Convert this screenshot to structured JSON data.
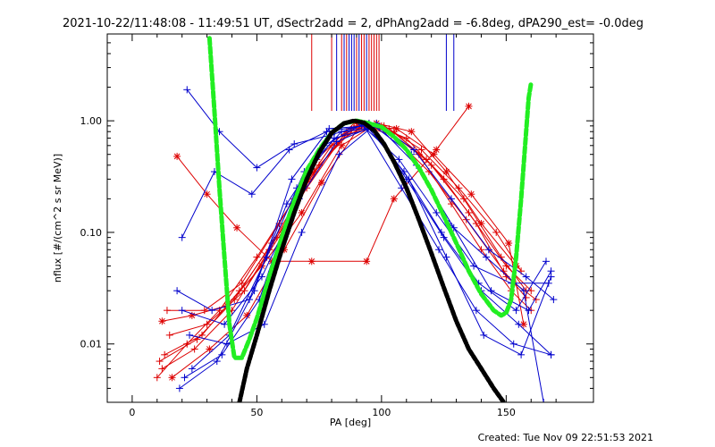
{
  "chart_data": {
    "type": "line",
    "title": "2021-10-22/11:48:08 - 11:49:51 UT, dSectr2add = 2, dPhAng2add = -6.8deg, dPA290_est= -0.0deg",
    "xlabel": "PA [deg]",
    "ylabel": "nflux [#/(cm^2 s sr MeV)]",
    "xlim": [
      -10,
      185
    ],
    "ylim": [
      0.003,
      6.0
    ],
    "yscale": "log",
    "xticks": [
      0,
      50,
      100,
      150
    ],
    "xtick_labels": [
      "0",
      "50",
      "100",
      "150"
    ],
    "yticks": [
      0.01,
      0.1,
      1.0
    ],
    "ytick_labels": [
      "0.01",
      "0.10",
      "1.00"
    ],
    "footer": "Created: Tue Nov 09 22:51:53 2021",
    "colors": {
      "red": "#dd0000",
      "blue": "#0000cc",
      "green": "#22ee22",
      "black": "#000000"
    },
    "vlines": [
      {
        "x": 72,
        "color": "red"
      },
      {
        "x": 80,
        "color": "red"
      },
      {
        "x": 82,
        "color": "blue"
      },
      {
        "x": 84,
        "color": "red"
      },
      {
        "x": 85,
        "color": "blue"
      },
      {
        "x": 86,
        "color": "red"
      },
      {
        "x": 87,
        "color": "blue"
      },
      {
        "x": 88,
        "color": "blue"
      },
      {
        "x": 89,
        "color": "blue"
      },
      {
        "x": 90,
        "color": "red"
      },
      {
        "x": 91,
        "color": "blue"
      },
      {
        "x": 92,
        "color": "red"
      },
      {
        "x": 93,
        "color": "red"
      },
      {
        "x": 94,
        "color": "blue"
      },
      {
        "x": 95,
        "color": "red"
      },
      {
        "x": 96,
        "color": "red"
      },
      {
        "x": 97,
        "color": "red"
      },
      {
        "x": 98,
        "color": "red"
      },
      {
        "x": 99,
        "color": "red"
      },
      {
        "x": 126,
        "color": "blue"
      },
      {
        "x": 129,
        "color": "blue"
      }
    ],
    "series": [
      {
        "color": "red",
        "marker": "star",
        "x": [
          18,
          30,
          42,
          56,
          72,
          94,
          105,
          122,
          135
        ],
        "y": [
          0.48,
          0.22,
          0.11,
          0.055,
          0.055,
          0.055,
          0.2,
          0.55,
          1.35
        ]
      },
      {
        "color": "red",
        "marker": "plus",
        "x": [
          12,
          25,
          40,
          55,
          70,
          85,
          100,
          115,
          128,
          140,
          152,
          160
        ],
        "y": [
          0.006,
          0.009,
          0.02,
          0.07,
          0.25,
          0.75,
          0.9,
          0.5,
          0.18,
          0.07,
          0.03,
          0.02
        ]
      },
      {
        "color": "red",
        "marker": "plus",
        "x": [
          10,
          22,
          35,
          50,
          65,
          80,
          95,
          110,
          125,
          138,
          150,
          162
        ],
        "y": [
          0.005,
          0.01,
          0.02,
          0.06,
          0.2,
          0.6,
          0.95,
          0.7,
          0.3,
          0.12,
          0.04,
          0.025
        ]
      },
      {
        "color": "red",
        "marker": "plus",
        "x": [
          13,
          28,
          43,
          58,
          73,
          88,
          103,
          118,
          133,
          148,
          158
        ],
        "y": [
          0.008,
          0.012,
          0.03,
          0.09,
          0.35,
          0.85,
          0.85,
          0.45,
          0.2,
          0.06,
          0.03
        ]
      },
      {
        "color": "red",
        "marker": "plus",
        "x": [
          11,
          26,
          41,
          56,
          71,
          86,
          101,
          116,
          131,
          146,
          156
        ],
        "y": [
          0.007,
          0.011,
          0.025,
          0.08,
          0.3,
          0.8,
          0.9,
          0.55,
          0.25,
          0.1,
          0.045
        ]
      },
      {
        "color": "red",
        "marker": "star",
        "x": [
          12,
          24,
          38,
          52,
          68,
          84,
          98,
          112,
          126,
          140,
          154
        ],
        "y": [
          0.016,
          0.018,
          0.022,
          0.05,
          0.15,
          0.6,
          0.95,
          0.8,
          0.35,
          0.12,
          0.05
        ]
      },
      {
        "color": "red",
        "marker": "plus",
        "x": [
          15,
          30,
          45,
          60,
          75,
          90,
          105,
          120,
          135,
          150,
          160
        ],
        "y": [
          0.012,
          0.015,
          0.03,
          0.1,
          0.4,
          0.9,
          0.8,
          0.4,
          0.15,
          0.05,
          0.03
        ]
      },
      {
        "color": "red",
        "marker": "plus",
        "x": [
          14,
          29,
          44,
          59,
          74,
          89,
          104,
          119,
          134,
          149,
          158
        ],
        "y": [
          0.02,
          0.02,
          0.035,
          0.12,
          0.45,
          0.95,
          0.75,
          0.35,
          0.13,
          0.045,
          0.026
        ]
      },
      {
        "color": "red",
        "marker": "star",
        "x": [
          16,
          31,
          46,
          61,
          76,
          91,
          106,
          121,
          136,
          151,
          157
        ],
        "y": [
          0.005,
          0.009,
          0.018,
          0.07,
          0.28,
          0.88,
          0.85,
          0.5,
          0.22,
          0.08,
          0.015
        ]
      },
      {
        "color": "blue",
        "marker": "plus",
        "x": [
          22,
          35,
          50,
          65,
          80,
          95,
          110,
          125,
          140,
          155,
          168
        ],
        "y": [
          1.9,
          0.8,
          0.38,
          0.62,
          0.75,
          0.95,
          0.3,
          0.09,
          0.03,
          0.015,
          0.008
        ]
      },
      {
        "color": "blue",
        "marker": "plus",
        "x": [
          20,
          33,
          48,
          63,
          78,
          93,
          108,
          123,
          138,
          153,
          168
        ],
        "y": [
          0.09,
          0.35,
          0.22,
          0.55,
          0.8,
          0.9,
          0.25,
          0.07,
          0.02,
          0.01,
          0.008
        ]
      },
      {
        "color": "blue",
        "marker": "plus",
        "x": [
          19,
          34,
          49,
          64,
          79,
          94,
          109,
          124,
          139,
          154,
          166
        ],
        "y": [
          0.004,
          0.007,
          0.03,
          0.3,
          0.85,
          0.9,
          0.35,
          0.1,
          0.035,
          0.02,
          0.055
        ]
      },
      {
        "color": "blue",
        "marker": "plus",
        "x": [
          21,
          36,
          51,
          66,
          81,
          96,
          111,
          126,
          141,
          156,
          168
        ],
        "y": [
          0.005,
          0.008,
          0.025,
          0.25,
          0.7,
          0.85,
          0.3,
          0.06,
          0.012,
          0.008,
          0.04
        ]
      },
      {
        "color": "blue",
        "marker": "plus",
        "x": [
          18,
          32,
          47,
          62,
          77,
          92,
          107,
          122,
          137,
          152,
          167
        ],
        "y": [
          0.03,
          0.02,
          0.025,
          0.18,
          0.6,
          0.92,
          0.45,
          0.15,
          0.05,
          0.035,
          0.035
        ]
      },
      {
        "color": "blue",
        "marker": "plus",
        "x": [
          23,
          38,
          53,
          68,
          83,
          98,
          113,
          128,
          143,
          158,
          169
        ],
        "y": [
          0.012,
          0.01,
          0.015,
          0.1,
          0.5,
          0.95,
          0.55,
          0.2,
          0.07,
          0.04,
          0.025
        ]
      },
      {
        "color": "blue",
        "marker": "plus",
        "x": [
          20,
          37,
          52,
          67,
          82,
          97,
          112,
          127,
          142,
          157,
          165
        ],
        "y": [
          0.02,
          0.015,
          0.04,
          0.2,
          0.65,
          0.9,
          0.5,
          0.12,
          0.06,
          0.03,
          0.003
        ]
      },
      {
        "color": "blue",
        "marker": "plus",
        "x": [
          24,
          39,
          54,
          69,
          84,
          99,
          114,
          129,
          144,
          159,
          168
        ],
        "y": [
          0.006,
          0.012,
          0.06,
          0.35,
          0.8,
          0.88,
          0.4,
          0.11,
          0.03,
          0.02,
          0.045
        ]
      },
      {
        "color": "green",
        "name": "",
        "marker": "none",
        "x": [
          31,
          33,
          35,
          37,
          39,
          41,
          44,
          47,
          50,
          55,
          60,
          65,
          70,
          75,
          80,
          85,
          90,
          95,
          100,
          105,
          110,
          115,
          120,
          125,
          130,
          135,
          140,
          145,
          148,
          150,
          152,
          154,
          156,
          158,
          159,
          160
        ],
        "y": [
          5.5,
          1.2,
          0.25,
          0.06,
          0.015,
          0.0075,
          0.0075,
          0.011,
          0.017,
          0.04,
          0.09,
          0.19,
          0.36,
          0.55,
          0.78,
          0.95,
          1.0,
          0.95,
          0.88,
          0.72,
          0.55,
          0.38,
          0.24,
          0.14,
          0.08,
          0.045,
          0.028,
          0.02,
          0.018,
          0.019,
          0.025,
          0.06,
          0.2,
          0.8,
          1.6,
          2.2
        ]
      },
      {
        "color": "black",
        "name": "",
        "marker": "none",
        "x": [
          43,
          46,
          50,
          55,
          60,
          65,
          70,
          75,
          80,
          85,
          89,
          93,
          97,
          101,
          105,
          110,
          115,
          120,
          125,
          130,
          135,
          140,
          145,
          149
        ],
        "y": [
          0.003,
          0.006,
          0.012,
          0.03,
          0.07,
          0.15,
          0.3,
          0.52,
          0.78,
          0.95,
          1.0,
          0.96,
          0.82,
          0.62,
          0.43,
          0.25,
          0.13,
          0.065,
          0.032,
          0.016,
          0.009,
          0.006,
          0.004,
          0.003
        ]
      }
    ]
  }
}
